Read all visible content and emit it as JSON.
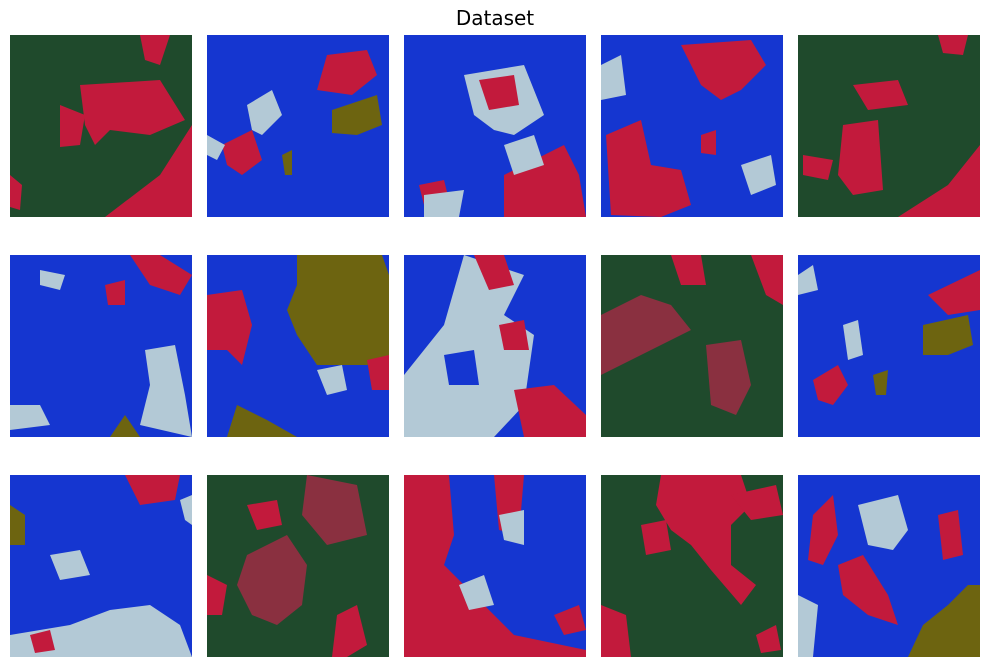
{
  "title": "Dataset"
}
